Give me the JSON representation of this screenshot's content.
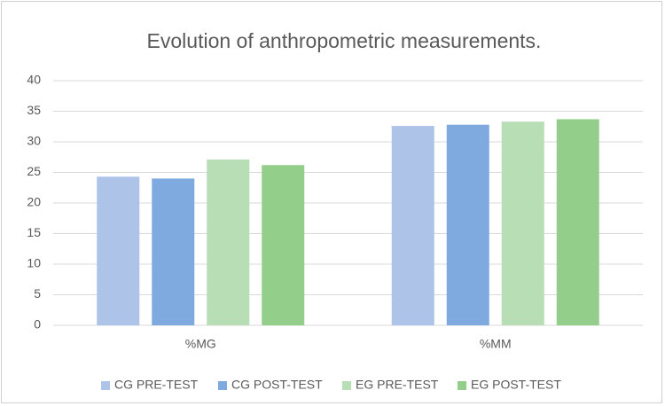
{
  "chart_data": {
    "type": "bar",
    "title": "Evolution of anthropometric measurements.",
    "categories": [
      "%MG",
      "%MM"
    ],
    "series": [
      {
        "name": "CG PRE-TEST",
        "color": "#aec3e8",
        "values": [
          24.3,
          32.6
        ]
      },
      {
        "name": "CG POST-TEST",
        "color": "#7eaadf",
        "values": [
          24.0,
          32.8
        ]
      },
      {
        "name": "EG PRE-TEST",
        "color": "#b8deb5",
        "values": [
          27.1,
          33.3
        ]
      },
      {
        "name": "EG POST-TEST",
        "color": "#93cf8a",
        "values": [
          26.2,
          33.7
        ]
      }
    ],
    "ylim": [
      0,
      40
    ],
    "yticks": [
      0,
      5,
      10,
      15,
      20,
      25,
      30,
      35,
      40
    ],
    "grid": true,
    "legend": "bottom"
  }
}
